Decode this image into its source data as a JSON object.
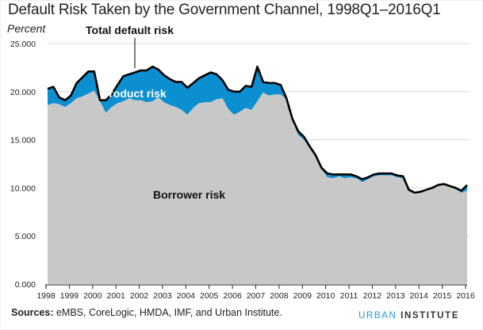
{
  "chart_data": {
    "type": "area",
    "title": "Default Risk Taken by the Government Channel, 1998Q1–2016Q1",
    "ylabel": "Percent",
    "xlabel": "",
    "ylim": [
      0,
      25
    ],
    "yticks": [
      "0.000",
      "5.000",
      "10.000",
      "15.000",
      "20.000",
      "25.000"
    ],
    "ytick_values": [
      0,
      5,
      10,
      15,
      20,
      25
    ],
    "xticks": [
      "1998",
      "1999",
      "2000",
      "2001",
      "2002",
      "2003",
      "2004",
      "2005",
      "2006",
      "2007",
      "2008",
      "2009",
      "2010",
      "2011",
      "2012",
      "2013",
      "2014",
      "2015",
      "2016"
    ],
    "x_start": 1998.0,
    "x_step": 0.25,
    "grid": true,
    "colors": {
      "borrower": "#c8c8c8",
      "product": "#0c8fd0",
      "total": "#000000",
      "grid": "#d9d9d9"
    },
    "series": [
      {
        "name": "Borrower risk",
        "values": [
          18.6,
          18.8,
          18.7,
          18.4,
          18.8,
          19.3,
          19.5,
          19.8,
          20.1,
          19.0,
          17.8,
          18.4,
          18.8,
          19.0,
          19.3,
          19.1,
          19.1,
          18.9,
          19.0,
          19.4,
          18.9,
          18.6,
          18.4,
          18.1,
          17.6,
          18.3,
          18.8,
          18.9,
          18.9,
          19.2,
          19.3,
          18.2,
          17.6,
          17.9,
          18.3,
          18.1,
          19.0,
          19.9,
          19.6,
          19.7,
          19.7,
          19.2,
          17.0,
          15.5,
          15.0,
          14.1,
          13.2,
          12.0,
          11.1,
          11.0,
          11.2,
          11.0,
          11.1,
          11.0,
          10.6,
          10.9,
          11.2,
          11.3,
          11.3,
          11.3,
          11.1,
          11.0,
          9.8,
          9.5,
          9.6,
          9.8,
          10.0,
          10.3,
          10.3,
          10.1,
          9.9,
          9.5,
          9.7
        ]
      },
      {
        "name": "Product risk",
        "values": [
          1.7,
          1.7,
          0.7,
          0.7,
          0.8,
          1.6,
          2.0,
          2.3,
          2.0,
          0.1,
          1.3,
          1.3,
          1.9,
          2.6,
          2.5,
          2.9,
          3.1,
          3.3,
          3.6,
          2.9,
          2.8,
          2.7,
          2.6,
          2.9,
          2.8,
          2.6,
          2.6,
          2.8,
          3.1,
          2.6,
          1.9,
          2.0,
          2.4,
          2.1,
          2.3,
          2.4,
          3.6,
          1.1,
          1.3,
          1.2,
          1.0,
          0.1,
          0.2,
          0.4,
          0.3,
          0.2,
          0.2,
          0.1,
          0.4,
          0.4,
          0.2,
          0.4,
          0.3,
          0.2,
          0.3,
          0.2,
          0.2,
          0.2,
          0.2,
          0.2,
          0.2,
          0.2,
          0.0,
          0.0,
          0.0,
          0.0,
          0.0,
          0.0,
          0.1,
          0.1,
          0.1,
          0.2,
          0.6
        ]
      },
      {
        "name": "Total default risk",
        "values": [
          20.3,
          20.5,
          19.4,
          19.1,
          19.6,
          20.9,
          21.5,
          22.1,
          22.1,
          19.1,
          19.1,
          19.7,
          20.7,
          21.6,
          21.8,
          22.0,
          22.2,
          22.2,
          22.6,
          22.3,
          21.7,
          21.3,
          21.0,
          21.0,
          20.4,
          20.9,
          21.4,
          21.7,
          22.0,
          21.8,
          21.2,
          20.2,
          20.0,
          20.0,
          20.6,
          20.5,
          22.6,
          21.0,
          20.9,
          20.9,
          20.7,
          19.3,
          17.2,
          15.9,
          15.3,
          14.3,
          13.4,
          12.1,
          11.5,
          11.4,
          11.4,
          11.4,
          11.4,
          11.2,
          10.9,
          11.1,
          11.4,
          11.5,
          11.5,
          11.5,
          11.3,
          11.2,
          9.8,
          9.5,
          9.6,
          9.8,
          10.0,
          10.3,
          10.4,
          10.2,
          10.0,
          9.7,
          10.3
        ]
      }
    ],
    "annotations": {
      "total": "Total default risk",
      "product": "Product risk",
      "borrower": "Borrower risk"
    }
  },
  "footer": {
    "sources_label": "Sources:",
    "sources_text": " eMBS, CoreLogic, HMDA, IMF, and Urban Institute.",
    "brand_urban": "URBAN",
    "brand_institute": "INSTITUTE"
  }
}
